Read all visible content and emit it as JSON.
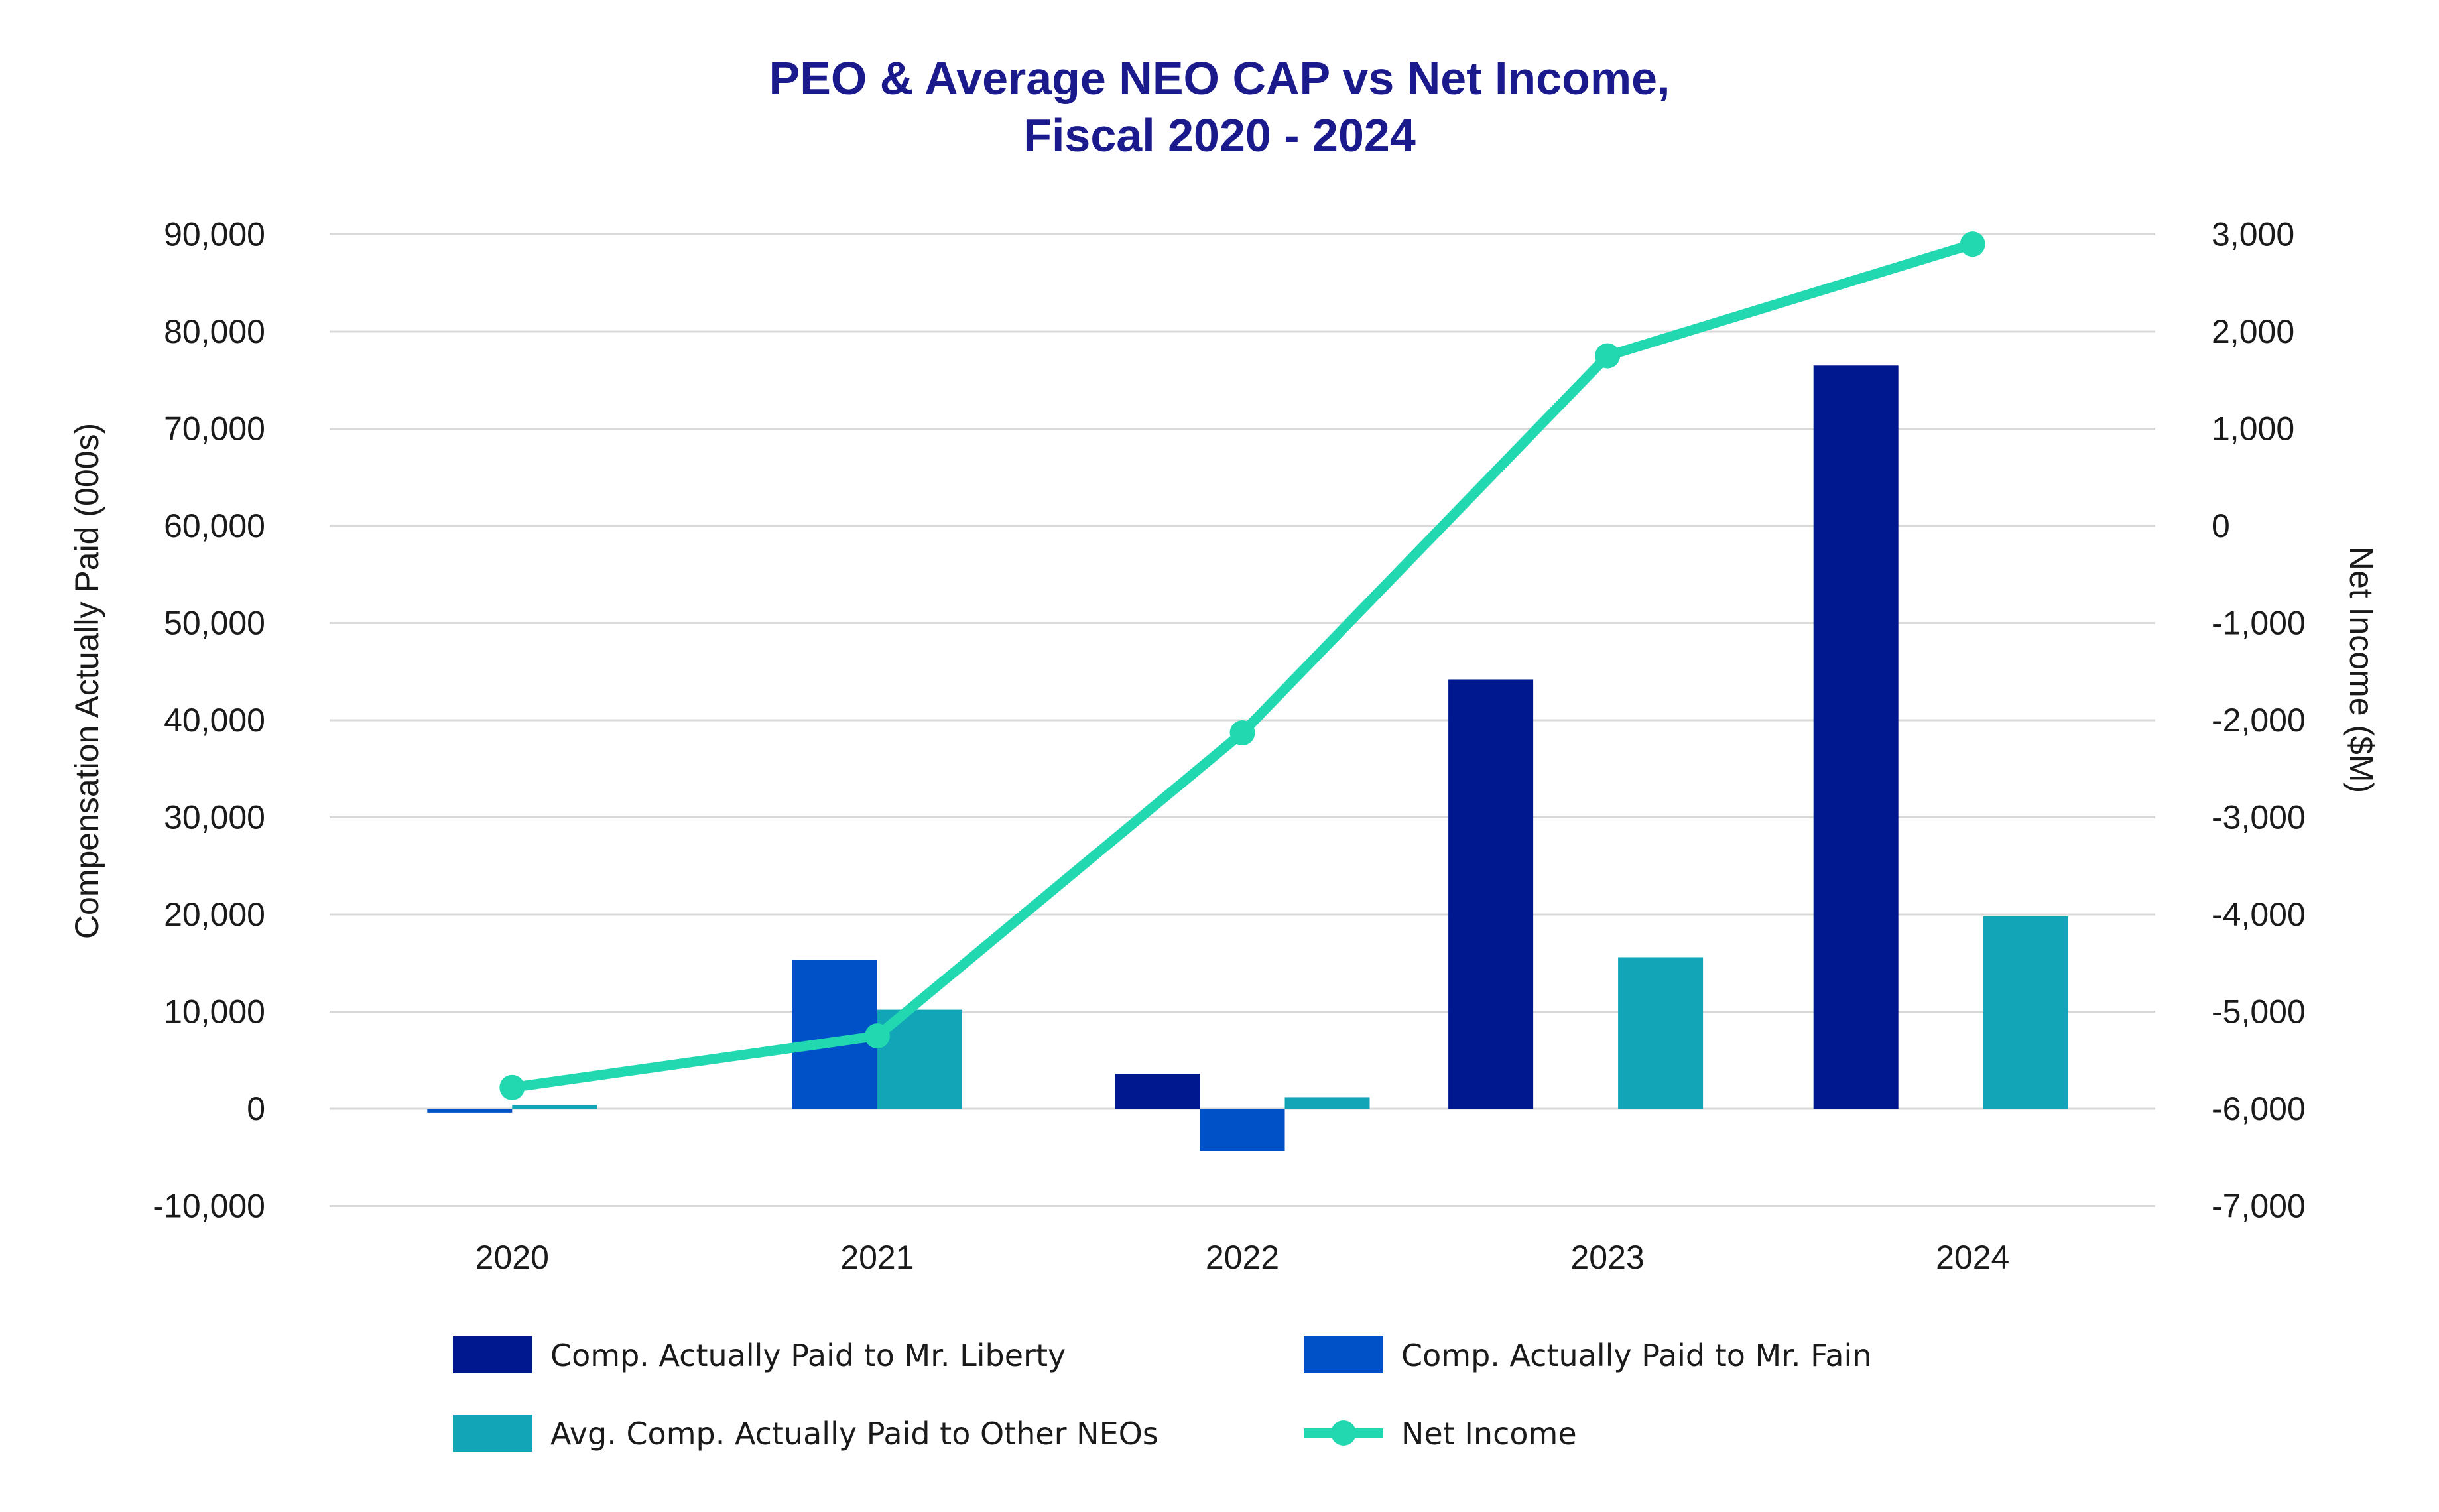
{
  "chart_data": {
    "type": "bar",
    "title": [
      "PEO & Average NEO CAP vs Net Income,",
      "Fiscal 2020 - 2024"
    ],
    "categories": [
      "2020",
      "2021",
      "2022",
      "2023",
      "2024"
    ],
    "ylabel": "Compensation Actually Paid (000s)",
    "y2label": "Net Income ($M)",
    "ylim": [
      -10000,
      90000
    ],
    "y2lim": [
      -7000,
      3000
    ],
    "yticks": [
      -10000,
      0,
      10000,
      20000,
      30000,
      40000,
      50000,
      60000,
      70000,
      80000,
      90000
    ],
    "yticklabels": [
      "-10,000",
      "0",
      "10,000",
      "20,000",
      "30,000",
      "40,000",
      "50,000",
      "60,000",
      "70,000",
      "80,000",
      "90,000"
    ],
    "y2ticks": [
      -7000,
      -6000,
      -5000,
      -4000,
      -3000,
      -2000,
      -1000,
      0,
      1000,
      2000,
      3000
    ],
    "y2ticklabels": [
      "-7,000",
      "-6,000",
      "-5,000",
      "-4,000",
      "-3,000",
      "-2,000",
      "-1,000",
      "0",
      "1,000",
      "2,000",
      "3,000"
    ],
    "grid": true,
    "legend_position": "bottom",
    "series": [
      {
        "name": "Comp. Actually Paid to Mr. Liberty",
        "type": "bar",
        "axis": "left",
        "color": "#00188F",
        "values": [
          null,
          null,
          3600,
          44200,
          76500
        ]
      },
      {
        "name": "Comp. Actually Paid to Mr. Fain",
        "type": "bar",
        "axis": "left",
        "color": "#0050C8",
        "values": [
          -400,
          15300,
          -4300,
          null,
          null
        ]
      },
      {
        "name": "Avg. Comp. Actually Paid to Other NEOs",
        "type": "bar",
        "axis": "left",
        "color": "#12A5B7",
        "values": [
          400,
          10200,
          1200,
          15600,
          19800
        ]
      },
      {
        "name": "Net Income",
        "type": "line",
        "axis": "right",
        "color": "#22D8B0",
        "values": [
          -5780,
          -5250,
          -2130,
          1750,
          2900
        ]
      }
    ],
    "legend_order": [
      0,
      1,
      2,
      3
    ]
  }
}
